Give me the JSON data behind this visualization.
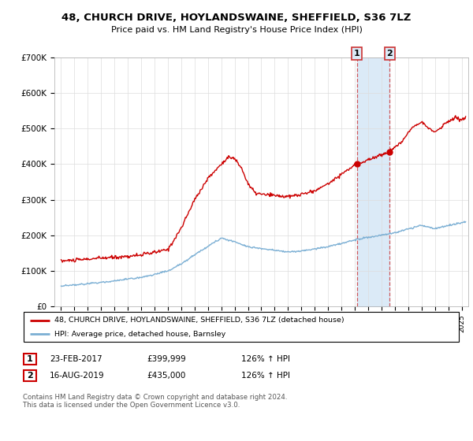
{
  "title": "48, CHURCH DRIVE, HOYLANDSWAINE, SHEFFIELD, S36 7LZ",
  "subtitle": "Price paid vs. HM Land Registry's House Price Index (HPI)",
  "legend_line1": "48, CHURCH DRIVE, HOYLANDSWAINE, SHEFFIELD, S36 7LZ (detached house)",
  "legend_line2": "HPI: Average price, detached house, Barnsley",
  "footnote": "Contains HM Land Registry data © Crown copyright and database right 2024.\nThis data is licensed under the Open Government Licence v3.0.",
  "sale1_date": "23-FEB-2017",
  "sale1_price": "£399,999",
  "sale1_hpi": "126% ↑ HPI",
  "sale2_date": "16-AUG-2019",
  "sale2_price": "£435,000",
  "sale2_hpi": "126% ↑ HPI",
  "red_color": "#cc0000",
  "blue_color": "#7bafd4",
  "shade_color": "#dbeaf7",
  "grid_color": "#dddddd",
  "sale1_x": 2017.15,
  "sale2_x": 2019.62,
  "ylim_min": 0,
  "ylim_max": 700000,
  "xlim_min": 1994.5,
  "xlim_max": 2025.5
}
